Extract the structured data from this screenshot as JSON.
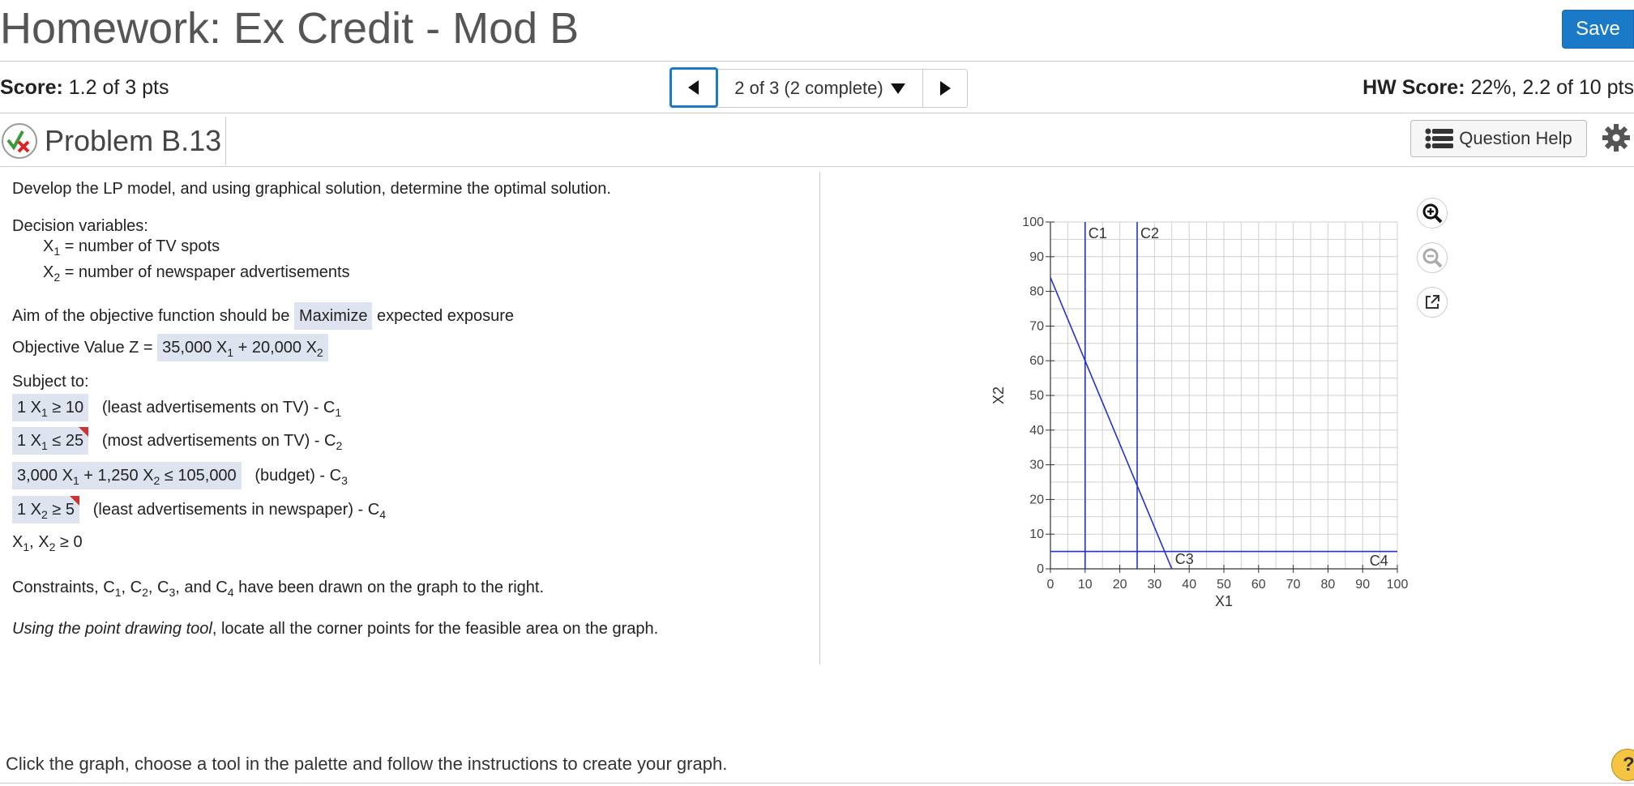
{
  "header": {
    "title": "Homework: Ex Credit - Mod B",
    "save_label": "Save"
  },
  "score": {
    "label": "Score:",
    "value": "1.2 of 3 pts"
  },
  "nav": {
    "position": "2 of 3 (2 complete)"
  },
  "hw_score": {
    "label": "HW Score:",
    "value": "22%, 2.2 of 10 pts"
  },
  "problem": {
    "title": "Problem B.13",
    "help_label": "Question Help"
  },
  "question": {
    "intro": "Develop the LP model, and using graphical solution, determine the optimal solution.",
    "decision_vars_label": "Decision variables:",
    "x1": "X",
    "x1_sub": "1",
    "x1_desc": " = number of TV spots",
    "x2": "X",
    "x2_sub": "2",
    "x2_desc": " = number of newspaper advertisements",
    "aim_text": "Aim of the objective function should be",
    "aim_value": "Maximize",
    "aim_tail": "expected exposure",
    "objective_label": "Objective Value Z =",
    "objective_a": "35,000 X",
    "objective_b": " + 20,000 X",
    "subject_to": "Subject to:",
    "c1_expr": "1 X",
    "c1_op": " ≥ 10",
    "c1_desc": "(least advertisements on TV) - C",
    "c2_expr": "1 X",
    "c2_op": " ≤ 25",
    "c2_desc": "(most advertisements on TV) - C",
    "c3_expr_a": "3,000 X",
    "c3_expr_b": " + 1,250 X",
    "c3_op": " ≤ 105,000",
    "c3_desc": "(budget) - C",
    "c4_expr": "1 X",
    "c4_op": " ≥ 5",
    "c4_desc": "(least advertisements in newspaper) - C",
    "nonneg_a": "X",
    "nonneg_b": ", X",
    "nonneg_c": " ≥ 0",
    "drawn_a": "Constraints, C",
    "drawn_b": ", C",
    "drawn_c": ", C",
    "drawn_d": ", and C",
    "drawn_e": " have been drawn on the graph to the right.",
    "tool_italic": "Using the point drawing tool",
    "tool_rest": ", locate all the corner points for the feasible area on the graph."
  },
  "footer": {
    "instructions": "Click the graph, choose a tool in the palette and follow the instructions to create your graph.",
    "help_symbol": "?"
  },
  "chart_data": {
    "type": "line",
    "xlabel": "X1",
    "ylabel": "X2",
    "xlim": [
      0,
      100
    ],
    "ylim": [
      0,
      100
    ],
    "xticks": [
      0,
      10,
      20,
      30,
      40,
      50,
      60,
      70,
      80,
      90,
      100
    ],
    "yticks": [
      0,
      10,
      20,
      30,
      40,
      50,
      60,
      70,
      80,
      90,
      100
    ],
    "grid": true,
    "series": [
      {
        "name": "C1",
        "x": [
          10,
          10
        ],
        "y": [
          0,
          100
        ]
      },
      {
        "name": "C2",
        "x": [
          25,
          25
        ],
        "y": [
          0,
          100
        ]
      },
      {
        "name": "C3",
        "x": [
          0,
          35
        ],
        "y": [
          84,
          0
        ]
      },
      {
        "name": "C4",
        "x": [
          0,
          100
        ],
        "y": [
          5,
          5
        ]
      }
    ],
    "line_color": "#2233cc"
  }
}
